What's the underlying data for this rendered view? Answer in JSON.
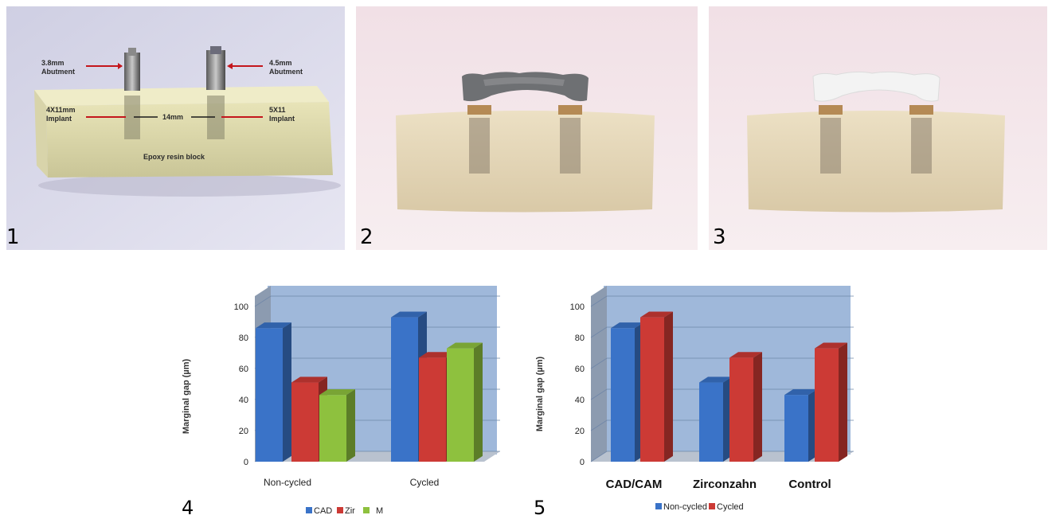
{
  "figure": {
    "panel_numbers": [
      "1",
      "2",
      "3",
      "4",
      "5"
    ],
    "photo1": {
      "labels": {
        "abutment_left": "3.8mm",
        "abutment_left_word": "Abutment",
        "abutment_right": "4.5mm",
        "abutment_right_word": "Abutment",
        "implant_left": "4X11mm",
        "implant_left_word": "Implant",
        "implant_right": "5X11",
        "implant_right_word": "Implant",
        "distance": "14mm",
        "block": "Epoxy resin block"
      }
    },
    "colors": {
      "blue": "#3a73c8",
      "red": "#cc3a35",
      "green": "#8ec13e",
      "chart_bg": "#9cb5d6",
      "accent_arrow": "#c4161c"
    }
  },
  "chart_data": [
    {
      "type": "bar",
      "ylabel": "Marginal gap (µm)",
      "ylim": [
        0,
        100
      ],
      "yticks": [
        "0",
        "20",
        "40",
        "60",
        "80",
        "100"
      ],
      "categories": [
        "Non-cycled",
        "Cycled"
      ],
      "series": [
        {
          "name": "CAD",
          "color": "#3a73c8",
          "values": [
            86,
            93
          ]
        },
        {
          "name": "Zir",
          "color": "#cc3a35",
          "values": [
            51,
            67
          ]
        },
        {
          "name": "M",
          "color": "#8ec13e",
          "values": [
            43,
            73
          ]
        }
      ],
      "legend_position": "bottom",
      "grid": true
    },
    {
      "type": "bar",
      "ylabel": "Marginal gap (µm)",
      "ylim": [
        0,
        100
      ],
      "yticks": [
        "0",
        "20",
        "40",
        "60",
        "80",
        "100"
      ],
      "categories": [
        "CAD/CAM",
        "Zirconzahn",
        "Control"
      ],
      "series": [
        {
          "name": "Non-cycled",
          "color": "#3a73c8",
          "values": [
            86,
            51,
            43
          ]
        },
        {
          "name": "Cycled",
          "color": "#cc3a35",
          "values": [
            93,
            67,
            73
          ]
        }
      ],
      "legend_position": "bottom",
      "grid": true
    }
  ]
}
